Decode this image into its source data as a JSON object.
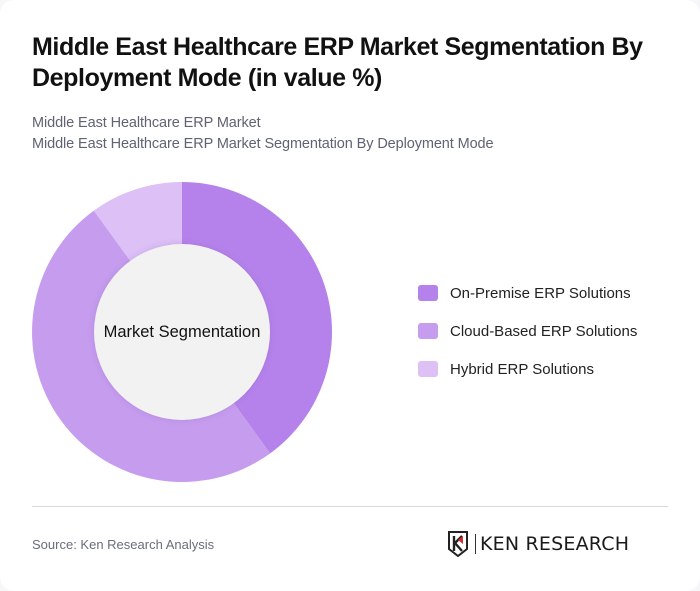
{
  "header": {
    "title": "Middle East Healthcare ERP Market Segmentation By Deployment Mode (in value %)",
    "subtitle_line1": "Middle East Healthcare ERP Market",
    "subtitle_line2": "Middle East Healthcare ERP Market Segmentation By Deployment Mode"
  },
  "chart": {
    "center_label": "Market Segmentation"
  },
  "legend": {
    "items": [
      {
        "label": "On-Premise ERP Solutions",
        "color": "#b482ea"
      },
      {
        "label": "Cloud-Based ERP Solutions",
        "color": "#c59cee"
      },
      {
        "label": "Hybrid ERP Solutions",
        "color": "#dcc0f6"
      }
    ]
  },
  "footer": {
    "source": "Source: Ken Research Analysis",
    "logo_text": "KEN RESEARCH"
  },
  "chart_data": {
    "type": "pie",
    "title": "Middle East Healthcare ERP Market Segmentation By Deployment Mode (in value %)",
    "subtitle": "Middle East Healthcare ERP Market Segmentation By Deployment Mode",
    "center_label": "Market Segmentation",
    "donut": true,
    "categories": [
      "On-Premise ERP Solutions",
      "Cloud-Based ERP Solutions",
      "Hybrid ERP Solutions"
    ],
    "values": [
      40,
      50,
      10
    ],
    "colors": [
      "#b482ea",
      "#c59cee",
      "#dcc0f6"
    ],
    "unit": "%",
    "legend_position": "right"
  }
}
